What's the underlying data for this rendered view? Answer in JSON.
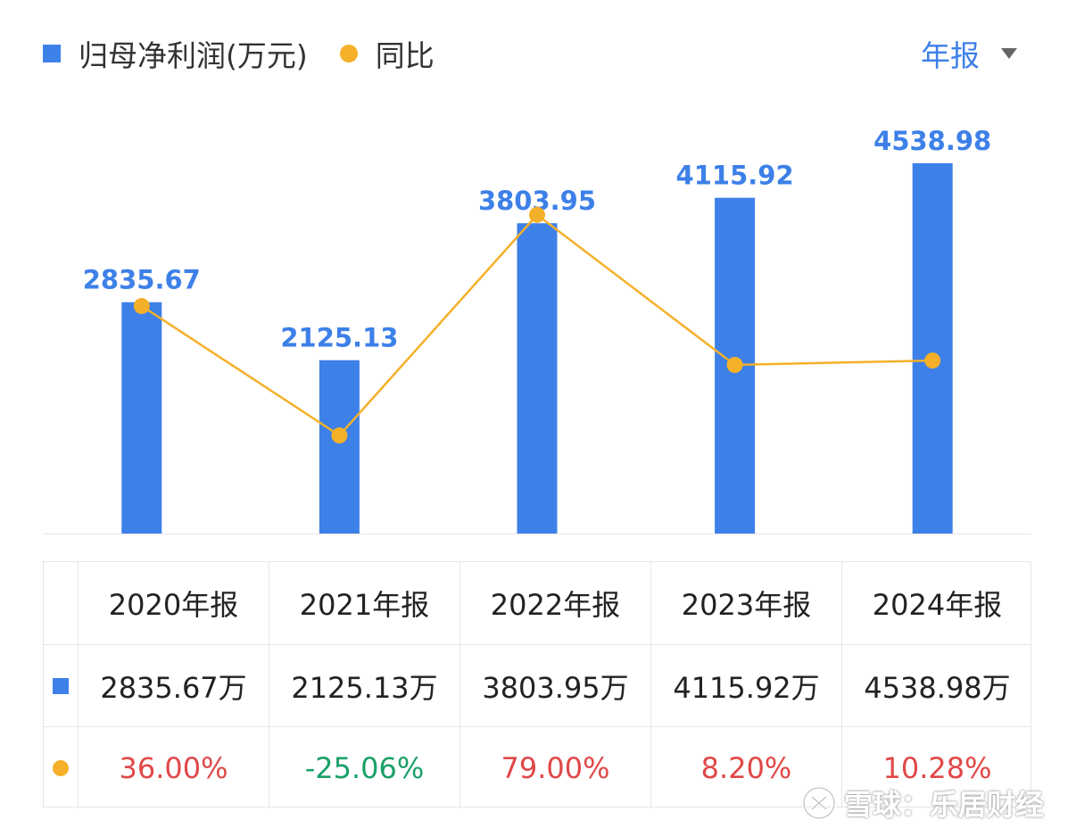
{
  "legend": {
    "bar_label": "归母净利润(万元)",
    "line_label": "同比"
  },
  "period_selector": {
    "label": "年报"
  },
  "chart_data": {
    "type": "bar",
    "categories": [
      "2020年报",
      "2021年报",
      "2022年报",
      "2023年报",
      "2024年报"
    ],
    "series": [
      {
        "name": "归母净利润(万元)",
        "type": "bar",
        "values": [
          2835.67,
          2125.13,
          3803.95,
          4115.92,
          4538.98
        ],
        "color": "#3d80e8"
      },
      {
        "name": "同比",
        "type": "line",
        "values": [
          36.0,
          -25.06,
          79.0,
          8.2,
          10.28
        ],
        "unit": "%",
        "color": "#f5b029"
      }
    ],
    "bar_value_labels": [
      "2835.67",
      "2125.13",
      "3803.95",
      "4115.92",
      "4538.98"
    ]
  },
  "table": {
    "headers": [
      "2020年报",
      "2021年报",
      "2022年报",
      "2023年报",
      "2024年报"
    ],
    "profit_row": [
      "2835.67万",
      "2125.13万",
      "3803.95万",
      "4115.92万",
      "4538.98万"
    ],
    "yoy_row": [
      "36.00%",
      "-25.06%",
      "79.00%",
      "8.20%",
      "10.28%"
    ]
  },
  "watermark": {
    "text": "雪球：乐居财经"
  },
  "colors": {
    "bar": "#3d80e8",
    "line": "#f5b029",
    "positive": "#e04848",
    "negative": "#1aa068"
  }
}
